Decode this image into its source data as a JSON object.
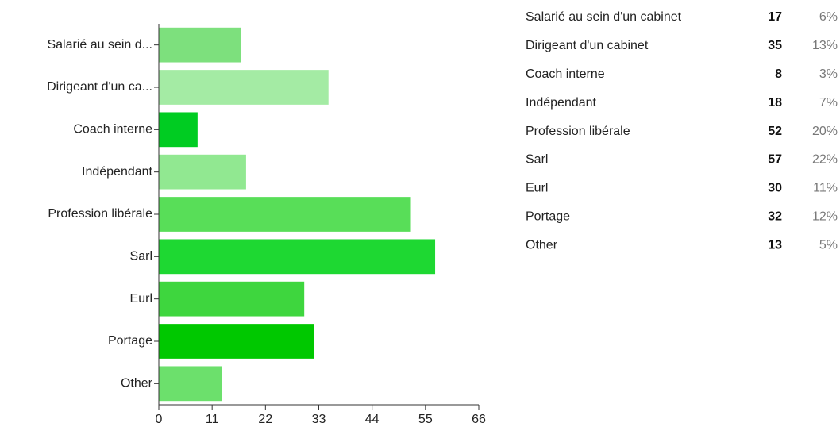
{
  "chart_data": {
    "type": "bar",
    "orientation": "horizontal",
    "categories": [
      "Salarié au sein d...",
      "Dirigeant d'un ca...",
      "Coach interne",
      "Indépendant",
      "Profession libérale",
      "Sarl",
      "Eurl",
      "Portage",
      "Other"
    ],
    "values": [
      17,
      35,
      8,
      18,
      52,
      57,
      30,
      32,
      13
    ],
    "colors": [
      "#7de07d",
      "#a4eba4",
      "#00cc22",
      "#91e891",
      "#58de58",
      "#1ed832",
      "#3ed63e",
      "#00c800",
      "#6ce06c"
    ],
    "xlim": [
      0,
      66
    ],
    "xticks": [
      0,
      11,
      22,
      33,
      44,
      55,
      66
    ]
  },
  "table": {
    "labels": [
      "Salarié au sein d'un cabinet",
      "Dirigeant d'un cabinet",
      "Coach interne",
      "Indépendant",
      "Profession libérale",
      "Sarl",
      "Eurl",
      "Portage",
      "Other"
    ],
    "percents": [
      "6%",
      "13%",
      "3%",
      "7%",
      "20%",
      "22%",
      "11%",
      "12%",
      "5%"
    ]
  }
}
